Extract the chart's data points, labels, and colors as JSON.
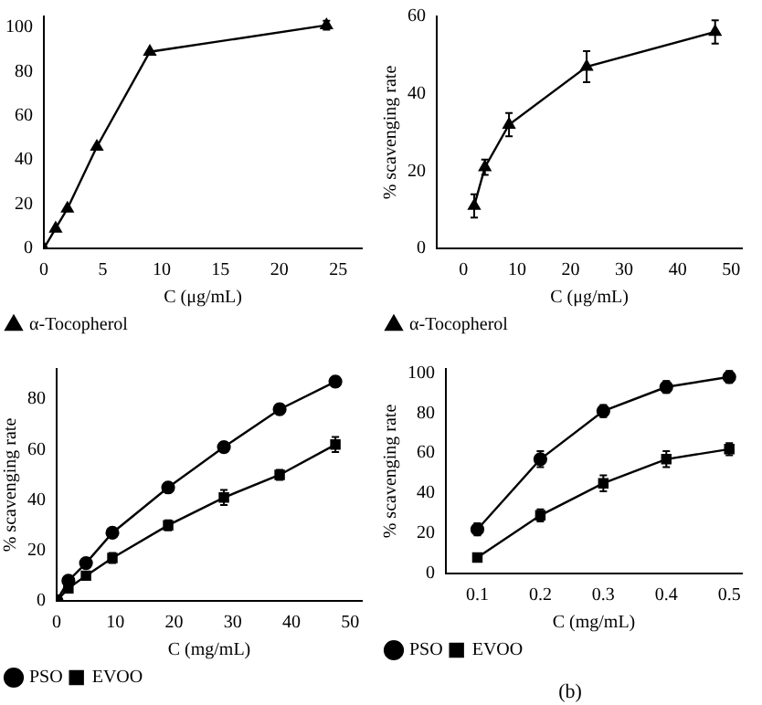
{
  "chart_data": [
    {
      "type": "line",
      "xlabel": "C (μg/mL)",
      "x": [
        0,
        1,
        2,
        4.5,
        9,
        24
      ],
      "xlim": [
        0,
        27
      ],
      "xticks": [
        0,
        5,
        10,
        15,
        20,
        25
      ],
      "ylim": [
        0,
        105
      ],
      "yticks": [
        0,
        20,
        40,
        60,
        80,
        100
      ],
      "legend": "bottom left",
      "series": [
        {
          "name": "α-Tocopherol",
          "color": "#000000",
          "marker": "triangle",
          "values": [
            0,
            9,
            18,
            46,
            89,
            101
          ],
          "errors": [
            null,
            null,
            null,
            null,
            null,
            2
          ]
        }
      ]
    },
    {
      "type": "line",
      "xlabel": "C (μg/mL)",
      "ylabel": "% scavenging rate",
      "x": [
        2,
        4,
        8.5,
        23,
        47
      ],
      "xlim": [
        -5,
        52
      ],
      "xticks": [
        0,
        10,
        20,
        30,
        40,
        50
      ],
      "ylim": [
        0,
        60
      ],
      "yticks": [
        0,
        20,
        40,
        60
      ],
      "legend": "bottom left",
      "series": [
        {
          "name": "α-Tocopherol",
          "color": "#000000",
          "marker": "triangle",
          "values": [
            11,
            21,
            32,
            47,
            56
          ],
          "errors": [
            3,
            2,
            3,
            4,
            3
          ]
        }
      ]
    },
    {
      "type": "line",
      "xlabel": "C (mg/mL)",
      "ylabel": "% scavenging rate",
      "x": [
        0,
        2,
        5,
        9.5,
        19,
        28.5,
        38,
        47.5
      ],
      "xlim": [
        0,
        52
      ],
      "xticks": [
        0,
        10,
        20,
        30,
        40,
        50
      ],
      "ylim": [
        0,
        92
      ],
      "yticks": [
        0,
        20,
        40,
        60,
        80
      ],
      "legend": "bottom left",
      "series": [
        {
          "name": "PSO",
          "color": "#000000",
          "marker": "circle",
          "values": [
            0,
            8,
            15,
            27,
            45,
            61,
            76,
            87
          ],
          "errors": [
            null,
            null,
            null,
            null,
            null,
            2,
            2,
            2
          ]
        },
        {
          "name": "EVOO",
          "color": "#000000",
          "marker": "square",
          "values": [
            0,
            5,
            10,
            17,
            30,
            41,
            50,
            62
          ],
          "errors": [
            null,
            null,
            null,
            2,
            2,
            3,
            2,
            3
          ]
        }
      ]
    },
    {
      "type": "line",
      "xlabel": "C (mg/mL)",
      "ylabel": "% scavenging rate",
      "x": [
        0.1,
        0.2,
        0.3,
        0.4,
        0.5
      ],
      "xlim": [
        0.05,
        0.52
      ],
      "xticks": [
        0.1,
        0.2,
        0.3,
        0.4,
        0.5
      ],
      "ylim": [
        0,
        102
      ],
      "yticks": [
        0,
        20,
        40,
        60,
        80,
        100
      ],
      "legend": "bottom left",
      "annotations": [
        "(b)"
      ],
      "series": [
        {
          "name": "PSO",
          "color": "#000000",
          "marker": "circle",
          "values": [
            22,
            57,
            81,
            93,
            98
          ],
          "errors": [
            3,
            4,
            3,
            3,
            3
          ]
        },
        {
          "name": "EVOO",
          "color": "#000000",
          "marker": "square",
          "values": [
            8,
            29,
            45,
            57,
            62
          ],
          "errors": [
            null,
            3,
            4,
            4,
            3
          ]
        }
      ]
    }
  ]
}
